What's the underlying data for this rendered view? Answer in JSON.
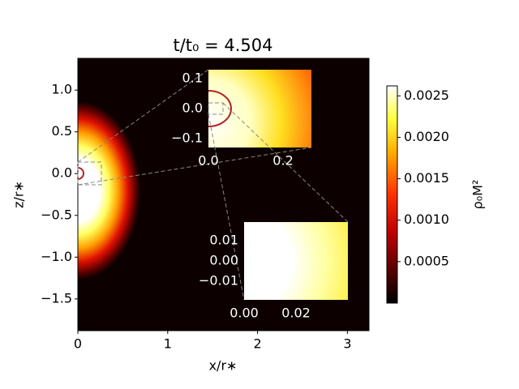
{
  "chart_data": {
    "type": "heatmap",
    "title": "t/t₀ = 4.504",
    "xlabel": "x/r∗",
    "ylabel": "z/r∗",
    "xlim": [
      0,
      3.24
    ],
    "ylim": [
      -1.88,
      1.38
    ],
    "xticks": [
      0,
      1,
      2,
      3
    ],
    "yticks": [
      {
        "value": -1.5,
        "label": "−1.5"
      },
      {
        "value": -1.0,
        "label": "−1.0"
      },
      {
        "value": -0.5,
        "label": "−0.5"
      },
      {
        "value": 0.0,
        "label": "0.0"
      },
      0.5,
      {
        "value": 1.0,
        "label": "1.0"
      }
    ],
    "colorbar": {
      "label": "ρ₀M²",
      "lim": [
        0,
        0.00262
      ],
      "ticks": [
        0.0005,
        {
          "value": 0.001,
          "label": "0.0010"
        },
        0.0015,
        {
          "value": 0.002,
          "label": "0.0020"
        },
        0.0025
      ]
    },
    "insets": [
      {
        "xlim": [
          0,
          0.276
        ],
        "ylim": [
          -0.13,
          0.13
        ],
        "xticks": [
          {
            "value": 0.0,
            "label": "0.0"
          },
          0.2
        ],
        "yticks": [
          {
            "value": -0.1,
            "label": "−0.1"
          },
          {
            "value": 0.0,
            "label": "0.0"
          },
          0.1
        ]
      },
      {
        "xlim": [
          0,
          0.04
        ],
        "ylim": [
          -0.0192,
          0.0192
        ],
        "xticks": [
          {
            "value": 0.0,
            "label": "0.00"
          },
          {
            "value": 0.02,
            "label": "0.02"
          }
        ],
        "yticks": [
          {
            "value": -0.01,
            "label": "−0.01"
          },
          {
            "value": 0.0,
            "label": "0.00"
          },
          0.01
        ]
      }
    ]
  }
}
